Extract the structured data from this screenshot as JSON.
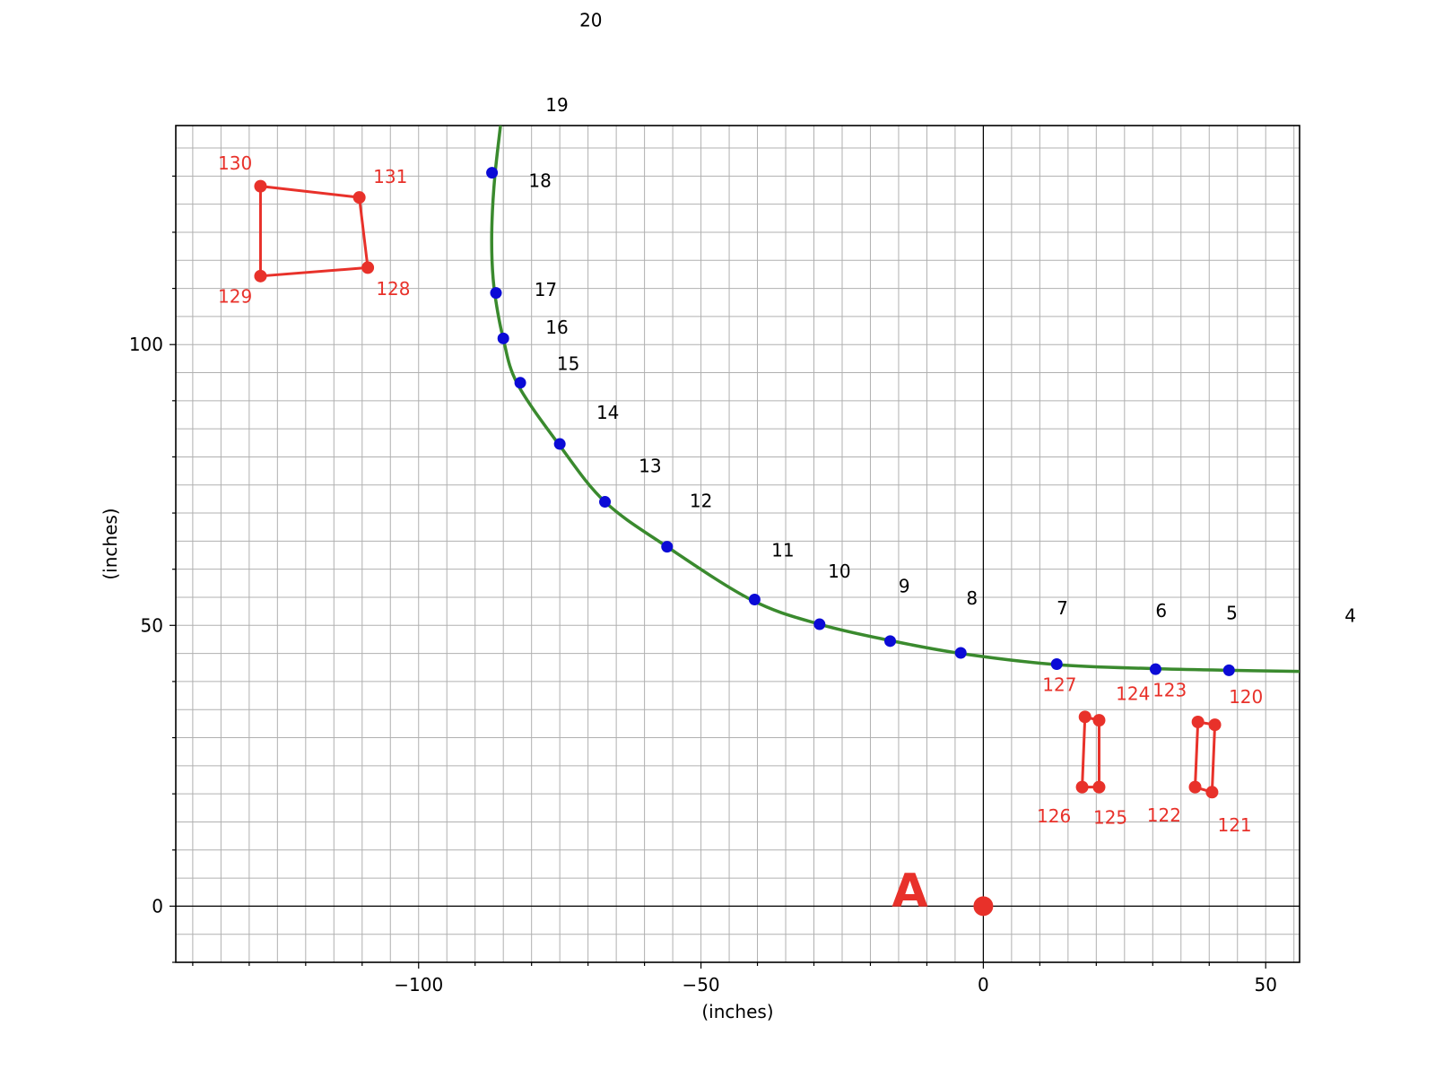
{
  "chart_data": {
    "type": "scatter",
    "xlabel": "(inches)",
    "ylabel": "(inches)",
    "xlim": [
      -143,
      56
    ],
    "ylim": [
      -10,
      139
    ],
    "x_ticks": [
      -100,
      -50,
      0,
      50
    ],
    "x_tick_labels": [
      "−100",
      "−50",
      "0",
      "50"
    ],
    "y_ticks": [
      0,
      50,
      100
    ],
    "y_tick_labels": [
      "0",
      "50",
      "100"
    ],
    "grid": true,
    "colors": {
      "curve": "#3a8a2e",
      "points": "#0b0bd6",
      "obstacles": "#e8312a",
      "origin": "#e8312a"
    },
    "path_curve": [
      [
        56,
        41.8
      ],
      [
        43.5,
        42
      ],
      [
        30,
        42.3
      ],
      [
        13,
        43
      ],
      [
        -4,
        45
      ],
      [
        -16.5,
        47.3
      ],
      [
        -29,
        50.2
      ],
      [
        -41,
        54.5
      ],
      [
        -56,
        64
      ],
      [
        -67,
        72
      ],
      [
        -75,
        82
      ],
      [
        -82.5,
        93
      ],
      [
        -85,
        101
      ],
      [
        -86.5,
        109
      ],
      [
        -87,
        115
      ],
      [
        -87,
        122
      ],
      [
        -86.5,
        130
      ],
      [
        -85.5,
        139
      ]
    ],
    "path_points": [
      {
        "label": "5",
        "x": 43.5,
        "y": 42
      },
      {
        "label": "6",
        "x": 30.5,
        "y": 42.2
      },
      {
        "label": "7",
        "x": 13,
        "y": 43.1
      },
      {
        "label": "8",
        "x": -4,
        "y": 45.1
      },
      {
        "label": "9",
        "x": -16.5,
        "y": 47.2
      },
      {
        "label": "10",
        "x": -29,
        "y": 50.2
      },
      {
        "label": "11",
        "x": -40.5,
        "y": 54.6
      },
      {
        "label": "12",
        "x": -56,
        "y": 64
      },
      {
        "label": "13",
        "x": -67,
        "y": 72
      },
      {
        "label": "14",
        "x": -75,
        "y": 82.3
      },
      {
        "label": "15",
        "x": -82,
        "y": 93.2
      },
      {
        "label": "16",
        "x": -85,
        "y": 101.1
      },
      {
        "label": "17",
        "x": -86.3,
        "y": 109.2
      },
      {
        "label": "18",
        "x": -87,
        "y": 130.6
      }
    ],
    "point_labels": [
      {
        "text": "4",
        "x": 65,
        "y": 51.7
      },
      {
        "text": "5",
        "x": 44,
        "y": 52.2
      },
      {
        "text": "6",
        "x": 31.5,
        "y": 52.6
      },
      {
        "text": "7",
        "x": 14,
        "y": 53.1
      },
      {
        "text": "8",
        "x": -2,
        "y": 54.8
      },
      {
        "text": "9",
        "x": -14,
        "y": 57
      },
      {
        "text": "10",
        "x": -25.5,
        "y": 59.6
      },
      {
        "text": "11",
        "x": -35.5,
        "y": 63.4
      },
      {
        "text": "12",
        "x": -50,
        "y": 72.2
      },
      {
        "text": "13",
        "x": -59,
        "y": 78.4
      },
      {
        "text": "14",
        "x": -66.5,
        "y": 87.9
      },
      {
        "text": "15",
        "x": -73.5,
        "y": 96.6
      },
      {
        "text": "16",
        "x": -75.5,
        "y": 103.1
      },
      {
        "text": "17",
        "x": -77.5,
        "y": 109.8
      },
      {
        "text": "18",
        "x": -78.5,
        "y": 129.2
      },
      {
        "text": "19",
        "x": -75.5,
        "y": 142.7
      },
      {
        "text": "20",
        "x": -69.5,
        "y": 157.8
      }
    ],
    "obstacles": [
      {
        "name": "left-box",
        "points": [
          {
            "label": "128",
            "x": -109,
            "y": 113.7
          },
          {
            "label": "129",
            "x": -128,
            "y": 112.2
          },
          {
            "label": "130",
            "x": -128,
            "y": 128.2
          },
          {
            "label": "131",
            "x": -110.5,
            "y": 126.2
          }
        ]
      },
      {
        "name": "right-post-a",
        "points": [
          {
            "label": "124",
            "x": 20.5,
            "y": 33.1
          },
          {
            "label": "125",
            "x": 20.5,
            "y": 21.2
          },
          {
            "label": "126",
            "x": 17.5,
            "y": 21.2
          },
          {
            "label": "127",
            "x": 18,
            "y": 33.7
          }
        ]
      },
      {
        "name": "right-post-b",
        "points": [
          {
            "label": "120",
            "x": 41,
            "y": 32.3
          },
          {
            "label": "121",
            "x": 40.5,
            "y": 20.3
          },
          {
            "label": "122",
            "x": 37.5,
            "y": 21.2
          },
          {
            "label": "123",
            "x": 38,
            "y": 32.8
          }
        ]
      }
    ],
    "obstacle_labels": [
      {
        "text": "120",
        "x": 46.5,
        "y": 37.3
      },
      {
        "text": "121",
        "x": 44.5,
        "y": 14.4
      },
      {
        "text": "122",
        "x": 32,
        "y": 16.2
      },
      {
        "text": "123",
        "x": 33,
        "y": 38.5
      },
      {
        "text": "124",
        "x": 26.5,
        "y": 37.8
      },
      {
        "text": "125",
        "x": 22.5,
        "y": 15.8
      },
      {
        "text": "126",
        "x": 12.5,
        "y": 16
      },
      {
        "text": "127",
        "x": 13.5,
        "y": 39.4
      },
      {
        "text": "128",
        "x": -104.5,
        "y": 109.9
      },
      {
        "text": "129",
        "x": -132.5,
        "y": 108.6
      },
      {
        "text": "130",
        "x": -132.5,
        "y": 132.3
      },
      {
        "text": "131",
        "x": -105,
        "y": 129.9
      }
    ],
    "origin": {
      "label": "A",
      "x": 0,
      "y": 0,
      "label_x": -13,
      "label_y": 2.8
    }
  }
}
